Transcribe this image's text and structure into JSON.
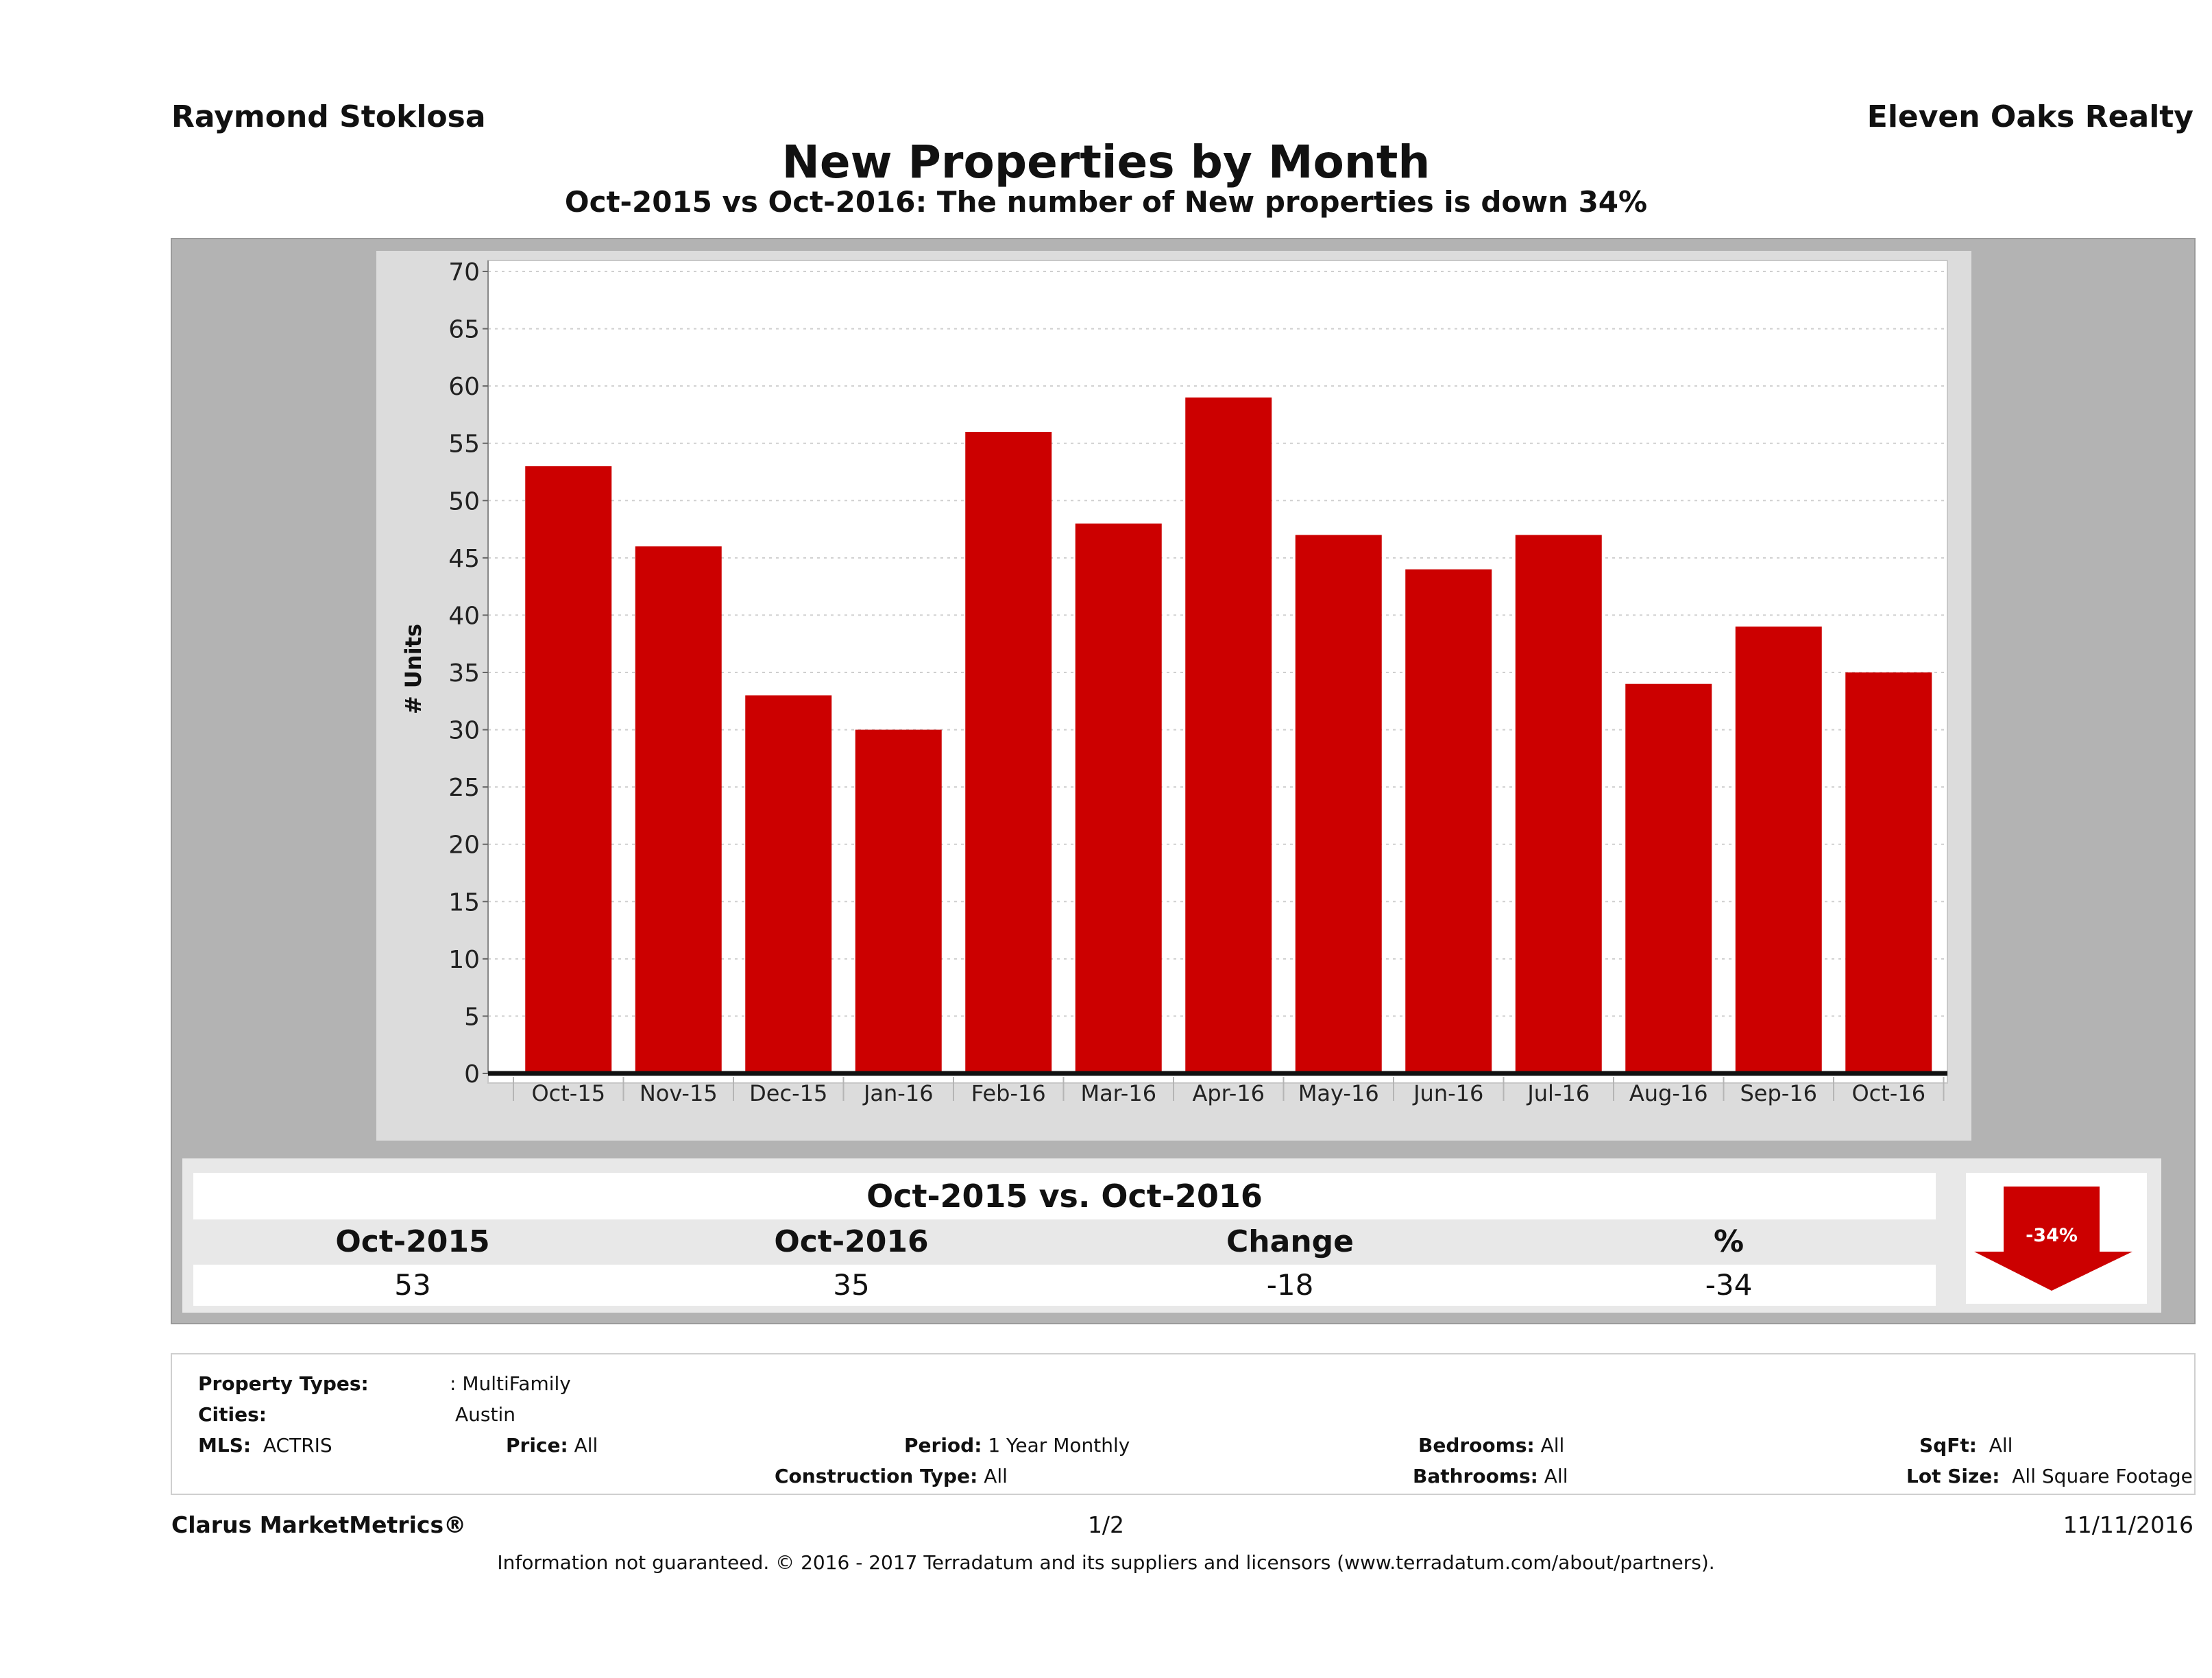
{
  "header": {
    "agent_name": "Raymond Stoklosa",
    "brokerage": "Eleven Oaks Realty",
    "title": "New Properties by Month",
    "subtitle": "Oct-2015 vs Oct-2016: The number of New  properties is down 34%"
  },
  "chart_data": {
    "type": "bar",
    "title": "New Properties by Month",
    "xlabel": "",
    "ylabel": "# Units",
    "ylim": [
      0,
      70
    ],
    "yticks": [
      "0",
      "5",
      "10",
      "15",
      "20",
      "25",
      "30",
      "35",
      "40",
      "45",
      "50",
      "55",
      "60",
      "65",
      "70"
    ],
    "grid": true,
    "legend": "none",
    "categories": [
      "Oct-15",
      "Nov-15",
      "Dec-15",
      "Jan-16",
      "Feb-16",
      "Mar-16",
      "Apr-16",
      "May-16",
      "Jun-16",
      "Jul-16",
      "Aug-16",
      "Sep-16",
      "Oct-16"
    ],
    "values": [
      53,
      46,
      33,
      30,
      56,
      48,
      59,
      47,
      44,
      47,
      34,
      39,
      35
    ],
    "bar_color": "#cc0000"
  },
  "summary": {
    "title": "Oct-2015 vs. Oct-2016",
    "headers": [
      "Oct-2015",
      "Oct-2016",
      "Change",
      "%"
    ],
    "values": [
      "53",
      "35",
      "-18",
      "-34"
    ],
    "badge": "-34%",
    "badge_color": "#cc0000"
  },
  "filters": {
    "property_types_label": "Property Types:",
    "property_types_value": ": MultiFamily",
    "cities_label": "Cities:",
    "cities_value": "Austin",
    "mls_label": "MLS:",
    "mls_value": "ACTRIS",
    "price_label": "Price:",
    "price_value": "All",
    "period_label": "Period:",
    "period_value": "1 Year Monthly",
    "construction_label": "Construction Type:",
    "construction_value": "All",
    "bedrooms_label": "Bedrooms:",
    "bedrooms_value": "All",
    "bathrooms_label": "Bathrooms:",
    "bathrooms_value": "All",
    "sqft_label": "SqFt:",
    "sqft_value": "All",
    "lotsize_label": "Lot Size:",
    "lotsize_value": "All Square Footage"
  },
  "footer": {
    "product": "Clarus MarketMetrics®",
    "page": "1/2",
    "date": "11/11/2016",
    "disclaimer": "Information not guaranteed. © 2016 - 2017 Terradatum and its suppliers and licensors (www.terradatum.com/about/partners)."
  }
}
